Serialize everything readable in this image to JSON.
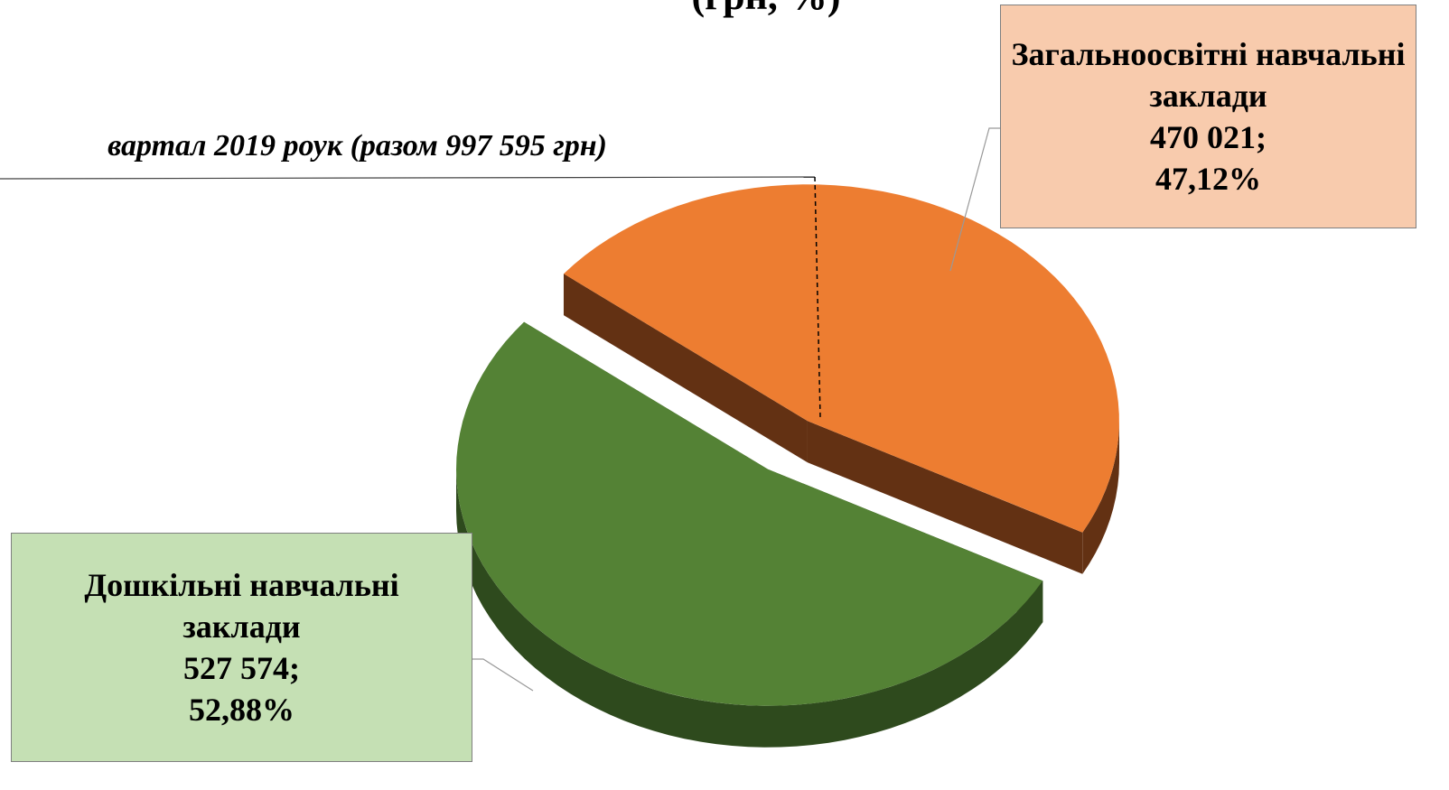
{
  "chart_data": {
    "type": "pie",
    "title": "(грн, %)",
    "subtitle": "вартал 2019 роук (разом 997 595 грн)",
    "categories": [
      "Загальноосвітні навчальні заклади",
      "Дошкільні навчальні заклади"
    ],
    "values": [
      470021,
      527574
    ],
    "value_labels": [
      "470 021;",
      "527 574;"
    ],
    "percents": [
      47.12,
      52.88
    ],
    "percent_labels": [
      "47,12%",
      "52,88%"
    ],
    "colors": [
      "#ed7d31",
      "#548235"
    ],
    "side_colors": [
      "#633113",
      "#2e4a1d"
    ],
    "label_colors": [
      "#f8cbad",
      "#c5e0b4"
    ]
  }
}
